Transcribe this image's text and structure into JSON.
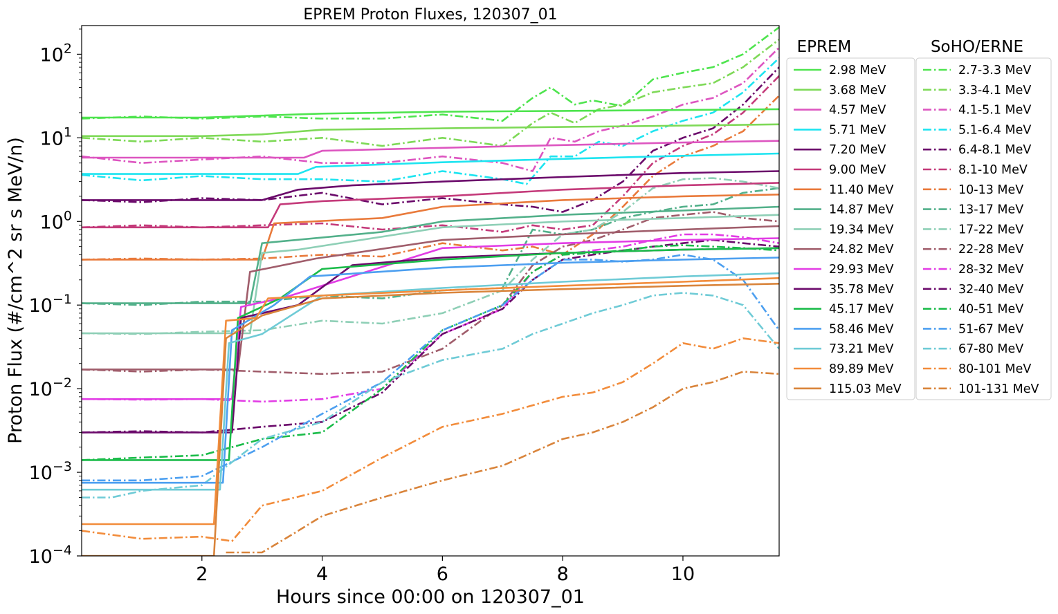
{
  "chart_data": {
    "type": "line",
    "title": "EPREM Proton Fluxes, 120307_01",
    "xlabel": "Hours since 00:00 on 120307_01",
    "ylabel": "Proton Flux (#/cm^2 sr s MeV/n)",
    "xlim": [
      0,
      11.6
    ],
    "ylim": [
      0.0001,
      220
    ],
    "yscale": "log",
    "x_ticks": [
      {
        "value": 2,
        "label": "2"
      },
      {
        "value": 4,
        "label": "4"
      },
      {
        "value": 6,
        "label": "6"
      },
      {
        "value": 8,
        "label": "8"
      },
      {
        "value": 10,
        "label": "10"
      }
    ],
    "y_ticks": [
      {
        "value": 0.0001,
        "base": "10",
        "exp": "−4"
      },
      {
        "value": 0.001,
        "base": "10",
        "exp": "−3"
      },
      {
        "value": 0.01,
        "base": "10",
        "exp": "−2"
      },
      {
        "value": 0.1,
        "base": "10",
        "exp": "−1"
      },
      {
        "value": 1,
        "base": "10",
        "exp": "0"
      },
      {
        "value": 10,
        "base": "10",
        "exp": "1"
      },
      {
        "value": 100,
        "base": "10",
        "exp": "2"
      }
    ],
    "grid": false,
    "legends": [
      {
        "title": "EPREM",
        "placement": "right-upper-left",
        "linestyle": "solid"
      },
      {
        "title": "SoHO/ERNE",
        "placement": "right-upper-right",
        "linestyle": "dashdot"
      }
    ],
    "series": [
      {
        "name": "2.98 MeV",
        "group": "EPREM",
        "color": "#4ee44e",
        "x": [
          0,
          2,
          4,
          6,
          8,
          10,
          11.6
        ],
        "y": [
          17.5,
          17.5,
          19.5,
          20.5,
          21,
          21.5,
          22
        ]
      },
      {
        "name": "3.68 MeV",
        "group": "EPREM",
        "color": "#7ed957",
        "x": [
          0,
          2,
          3,
          4,
          6,
          8,
          10,
          11.6
        ],
        "y": [
          10.5,
          10.5,
          11,
          12.5,
          13,
          13.5,
          14,
          14.5
        ]
      },
      {
        "name": "4.57 MeV",
        "group": "EPREM",
        "color": "#dd55c0",
        "x": [
          0,
          3.7,
          4,
          6,
          8,
          10,
          11.6
        ],
        "y": [
          5.8,
          5.8,
          7,
          7.6,
          8.2,
          8.8,
          9.2
        ]
      },
      {
        "name": "5.71 MeV",
        "group": "EPREM",
        "color": "#1de4f0",
        "x": [
          0,
          3.6,
          3.9,
          6,
          8,
          10,
          11.6
        ],
        "y": [
          3.7,
          3.7,
          4.5,
          5.1,
          5.6,
          6.1,
          6.5
        ]
      },
      {
        "name": "7.20 MeV",
        "group": "EPREM",
        "color": "#6b0a6b",
        "x": [
          0,
          3.0,
          3.6,
          4.5,
          6,
          8,
          10,
          11.6
        ],
        "y": [
          1.8,
          1.8,
          2.4,
          2.7,
          3.0,
          3.4,
          3.8,
          4.0
        ]
      },
      {
        "name": "9.00 MeV",
        "group": "EPREM",
        "color": "#c43a7a",
        "x": [
          0,
          3.1,
          3.3,
          4,
          6,
          8,
          10,
          11.6
        ],
        "y": [
          0.85,
          0.85,
          1.6,
          1.75,
          2.0,
          2.4,
          2.7,
          2.9
        ]
      },
      {
        "name": "11.40 MeV",
        "group": "EPREM",
        "color": "#e97a3b",
        "x": [
          0,
          3.0,
          3.2,
          5,
          6,
          8,
          10,
          11.6
        ],
        "y": [
          0.35,
          0.35,
          0.95,
          1.1,
          1.5,
          1.8,
          2.0,
          2.1
        ]
      },
      {
        "name": "14.87 MeV",
        "group": "EPREM",
        "color": "#52b08a",
        "x": [
          0,
          2.8,
          3.0,
          5,
          6,
          8,
          10,
          11.6
        ],
        "y": [
          0.105,
          0.105,
          0.55,
          0.75,
          1.0,
          1.2,
          1.35,
          1.5
        ]
      },
      {
        "name": "19.34 MeV",
        "group": "EPREM",
        "color": "#8ecfb6",
        "x": [
          0,
          2.8,
          3.0,
          3.6,
          6,
          8,
          10,
          11.6
        ],
        "y": [
          0.046,
          0.046,
          0.42,
          0.46,
          0.85,
          1.0,
          1.1,
          1.2
        ]
      },
      {
        "name": "24.82 MeV",
        "group": "EPREM",
        "color": "#a05d6b",
        "x": [
          0,
          2.6,
          2.8,
          3.9,
          6,
          8,
          10,
          11.6
        ],
        "y": [
          0.017,
          0.017,
          0.25,
          0.36,
          0.6,
          0.7,
          0.8,
          0.88
        ]
      },
      {
        "name": "29.93 MeV",
        "group": "EPREM",
        "color": "#e23ce5",
        "x": [
          0,
          2.5,
          2.65,
          3.4,
          6,
          8,
          10,
          11.6
        ],
        "y": [
          0.0075,
          0.0075,
          0.095,
          0.125,
          0.48,
          0.55,
          0.6,
          0.63
        ]
      },
      {
        "name": "35.78 MeV",
        "group": "EPREM",
        "color": "#6b0a6b",
        "x": [
          0,
          2.5,
          2.65,
          3.6,
          4.5,
          6,
          8,
          10,
          11.6
        ],
        "y": [
          0.003,
          0.003,
          0.07,
          0.1,
          0.3,
          0.37,
          0.42,
          0.46,
          0.48
        ]
      },
      {
        "name": "45.17 MeV",
        "group": "EPREM",
        "color": "#1bbc4a",
        "x": [
          0,
          2.45,
          2.6,
          3.3,
          4,
          6,
          8,
          10,
          11.6
        ],
        "y": [
          0.0014,
          0.0014,
          0.07,
          0.12,
          0.27,
          0.35,
          0.42,
          0.46,
          0.48
        ]
      },
      {
        "name": "58.46 MeV",
        "group": "EPREM",
        "color": "#4c9ff0",
        "x": [
          0,
          2.35,
          2.5,
          3.2,
          3.8,
          6,
          8,
          10,
          11.6
        ],
        "y": [
          0.00075,
          0.00075,
          0.05,
          0.1,
          0.22,
          0.28,
          0.32,
          0.35,
          0.37
        ]
      },
      {
        "name": "73.21 MeV",
        "group": "EPREM",
        "color": "#6fcbd6",
        "x": [
          0,
          2.3,
          2.45,
          3.0,
          4,
          6,
          8,
          10,
          11.6
        ],
        "y": [
          0.00062,
          0.00062,
          0.035,
          0.045,
          0.13,
          0.16,
          0.19,
          0.22,
          0.24
        ]
      },
      {
        "name": "89.89 MeV",
        "group": "EPREM",
        "color": "#f28c3b",
        "x": [
          0,
          2.2,
          2.4,
          2.9,
          3.1,
          4,
          6,
          8,
          10,
          11.6
        ],
        "y": [
          0.00024,
          0.00024,
          0.065,
          0.07,
          0.12,
          0.13,
          0.15,
          0.17,
          0.19,
          0.21
        ]
      },
      {
        "name": "115.03 MeV",
        "group": "EPREM",
        "color": "#d9843b",
        "x": [
          0,
          2.2,
          2.4,
          3.0,
          4,
          6,
          8,
          10,
          11.6
        ],
        "y": [
          0.0001,
          0.0001,
          0.04,
          0.075,
          0.12,
          0.14,
          0.155,
          0.17,
          0.18
        ]
      },
      {
        "name": "2.7-3.3 MeV",
        "group": "SoHO/ERNE",
        "color": "#4ee44e",
        "x": [
          0,
          1,
          2,
          3,
          4,
          5,
          6,
          7,
          7.5,
          7.8,
          8.2,
          8.5,
          9,
          9.5,
          10,
          10.5,
          11,
          11.6
        ],
        "y": [
          17,
          18,
          17,
          18,
          17,
          17,
          19,
          16,
          30,
          40,
          25,
          28,
          24,
          50,
          60,
          70,
          100,
          210
        ]
      },
      {
        "name": "3.3-4.1 MeV",
        "group": "SoHO/ERNE",
        "color": "#7ed957",
        "x": [
          0,
          1,
          2,
          3,
          4,
          5,
          6,
          7,
          7.5,
          7.8,
          8.2,
          8.6,
          9,
          9.5,
          10,
          10.5,
          11,
          11.6
        ],
        "y": [
          10,
          9,
          10,
          9,
          10,
          8,
          10,
          8,
          15,
          20,
          15,
          22,
          25,
          35,
          40,
          45,
          70,
          150
        ]
      },
      {
        "name": "4.1-5.1 MeV",
        "group": "SoHO/ERNE",
        "color": "#dd55c0",
        "x": [
          0,
          1,
          2,
          3,
          4,
          5,
          6,
          7,
          7.5,
          7.8,
          8.2,
          8.6,
          9,
          9.5,
          10,
          10.5,
          11,
          11.6
        ],
        "y": [
          6,
          5,
          5.5,
          6,
          5,
          5,
          6,
          5,
          4,
          10,
          9,
          12,
          14,
          18,
          25,
          30,
          45,
          120
        ]
      },
      {
        "name": "5.1-6.4 MeV",
        "group": "SoHO/ERNE",
        "color": "#1de4f0",
        "x": [
          0,
          1,
          2,
          3,
          4,
          5,
          6,
          7,
          7.4,
          7.8,
          8.2,
          8.6,
          9,
          9.5,
          10,
          10.5,
          11,
          11.6
        ],
        "y": [
          3.6,
          3.1,
          3.5,
          3.2,
          3.2,
          3,
          4,
          3.2,
          2.8,
          6,
          6,
          9,
          8,
          12,
          16,
          20,
          35,
          90
        ]
      },
      {
        "name": "6.4-8.1 MeV",
        "group": "SoHO/ERNE",
        "color": "#6b0a6b",
        "x": [
          0,
          1,
          2,
          3,
          4,
          5,
          6,
          7,
          7.5,
          8,
          8.5,
          9,
          9.5,
          10,
          10.5,
          11,
          11.6
        ],
        "y": [
          1.8,
          1.7,
          1.9,
          1.8,
          2.2,
          1.6,
          1.9,
          1.6,
          1.5,
          1.3,
          1.8,
          3,
          7,
          10,
          13,
          25,
          70
        ]
      },
      {
        "name": "8.1-10 MeV",
        "group": "SoHO/ERNE",
        "color": "#c43a7a",
        "x": [
          0,
          1,
          2,
          3,
          4,
          5,
          6,
          7,
          7.5,
          8,
          8.5,
          9,
          9.5,
          10,
          10.5,
          11,
          11.6
        ],
        "y": [
          0.85,
          0.9,
          0.85,
          0.9,
          0.95,
          0.8,
          0.9,
          0.75,
          0.9,
          0.8,
          0.9,
          2,
          5,
          8,
          11,
          20,
          55
        ]
      },
      {
        "name": "10-13 MeV",
        "group": "SoHO/ERNE",
        "color": "#e97a3b",
        "x": [
          0,
          1,
          2,
          3,
          4,
          5,
          6,
          7,
          7.5,
          8,
          8.5,
          9,
          9.5,
          10,
          10.5,
          11,
          11.6
        ],
        "y": [
          0.35,
          0.36,
          0.35,
          0.36,
          0.4,
          0.38,
          0.55,
          0.45,
          0.5,
          0.4,
          0.7,
          1.5,
          3.5,
          6,
          8,
          12,
          32
        ]
      },
      {
        "name": "13-17 MeV",
        "group": "SoHO/ERNE",
        "color": "#52b08a",
        "x": [
          0,
          1,
          2,
          3,
          4,
          5,
          6,
          7,
          7.5,
          8,
          8.5,
          9,
          9.5,
          10,
          10.5,
          11,
          11.6
        ],
        "y": [
          0.105,
          0.1,
          0.11,
          0.11,
          0.13,
          0.12,
          0.15,
          0.16,
          0.8,
          0.7,
          0.8,
          1.1,
          1.3,
          1.5,
          1.6,
          2.2,
          2.5
        ]
      },
      {
        "name": "17-22 MeV",
        "group": "SoHO/ERNE",
        "color": "#8ecfb6",
        "x": [
          0,
          1,
          2,
          3,
          4,
          5,
          6,
          7,
          7.5,
          8,
          8.5,
          9,
          9.5,
          10,
          10.5,
          11,
          11.6
        ],
        "y": [
          0.046,
          0.045,
          0.048,
          0.05,
          0.065,
          0.06,
          0.08,
          0.15,
          0.35,
          0.7,
          0.8,
          1.3,
          2.5,
          3.2,
          3.3,
          3,
          2.5
        ]
      },
      {
        "name": "22-28 MeV",
        "group": "SoHO/ERNE",
        "color": "#a05d6b",
        "x": [
          0,
          1,
          2,
          3,
          4,
          5,
          6,
          7,
          7.5,
          8,
          8.5,
          9,
          9.5,
          10,
          10.5,
          11,
          11.6
        ],
        "y": [
          0.017,
          0.016,
          0.017,
          0.016,
          0.015,
          0.016,
          0.03,
          0.1,
          0.3,
          0.5,
          0.6,
          0.8,
          1.1,
          1.2,
          1.3,
          1.1,
          1
        ]
      },
      {
        "name": "28-32 MeV",
        "group": "SoHO/ERNE",
        "color": "#e23ce5",
        "x": [
          0,
          1,
          2,
          3,
          4,
          5,
          6,
          7,
          7.5,
          8,
          8.5,
          9,
          9.5,
          10,
          10.5,
          11,
          11.6
        ],
        "y": [
          0.0075,
          0.0074,
          0.0075,
          0.007,
          0.0075,
          0.01,
          0.045,
          0.09,
          0.25,
          0.4,
          0.45,
          0.5,
          0.6,
          0.7,
          0.7,
          0.65,
          0.55
        ]
      },
      {
        "name": "32-40 MeV",
        "group": "SoHO/ERNE",
        "color": "#6b0a6b",
        "x": [
          0,
          1,
          2,
          3,
          4,
          5,
          6,
          7,
          7.5,
          8,
          8.5,
          9,
          9.5,
          10,
          10.5,
          11,
          11.6
        ],
        "y": [
          0.003,
          0.0031,
          0.003,
          0.0035,
          0.004,
          0.009,
          0.045,
          0.09,
          0.2,
          0.35,
          0.4,
          0.45,
          0.5,
          0.55,
          0.6,
          0.55,
          0.5
        ]
      },
      {
        "name": "40-51 MeV",
        "group": "SoHO/ERNE",
        "color": "#1bbc4a",
        "x": [
          0,
          1,
          2,
          3,
          4,
          5,
          6,
          7,
          7.5,
          8,
          8.5,
          9,
          9.5,
          10,
          10.5,
          11,
          11.6
        ],
        "y": [
          0.0014,
          0.0015,
          0.0016,
          0.0025,
          0.003,
          0.01,
          0.05,
          0.1,
          0.25,
          0.4,
          0.42,
          0.45,
          0.5,
          0.52,
          0.5,
          0.48,
          0.45
        ]
      },
      {
        "name": "51-67 MeV",
        "group": "SoHO/ERNE",
        "color": "#4c9ff0",
        "x": [
          0,
          1,
          2,
          3,
          4,
          5,
          6,
          7,
          7.5,
          8,
          8.5,
          9,
          9.5,
          10,
          10.5,
          11,
          11.6
        ],
        "y": [
          0.0008,
          0.0008,
          0.0009,
          0.002,
          0.005,
          0.012,
          0.05,
          0.1,
          0.2,
          0.35,
          0.35,
          0.33,
          0.35,
          0.4,
          0.35,
          0.2,
          0.05
        ]
      },
      {
        "name": "67-80 MeV",
        "group": "SoHO/ERNE",
        "color": "#6fcbd6",
        "x": [
          0,
          0.5,
          1,
          2,
          3,
          4,
          5,
          6,
          7,
          7.5,
          8,
          8.5,
          9,
          9.5,
          10,
          10.5,
          11,
          11.6
        ],
        "y": [
          0.0005,
          0.0005,
          0.0006,
          0.0007,
          0.0025,
          0.004,
          0.012,
          0.022,
          0.03,
          0.045,
          0.06,
          0.08,
          0.1,
          0.13,
          0.14,
          0.13,
          0.1,
          0.03
        ]
      },
      {
        "name": "80-101 MeV",
        "group": "SoHO/ERNE",
        "color": "#f28c3b",
        "x": [
          0,
          1,
          2,
          2.5,
          3,
          4,
          5,
          6,
          7,
          8,
          8.5,
          9,
          9.5,
          10,
          10.5,
          11,
          11.6
        ],
        "y": [
          0.0002,
          0.00016,
          0.00017,
          0.00015,
          0.0004,
          0.0006,
          0.0015,
          0.0035,
          0.005,
          0.008,
          0.009,
          0.012,
          0.02,
          0.035,
          0.03,
          0.04,
          0.035
        ]
      },
      {
        "name": "101-131 MeV",
        "group": "SoHO/ERNE",
        "color": "#d9843b",
        "x": [
          2.4,
          2.6,
          3,
          3.5,
          4,
          5,
          6,
          7,
          8,
          8.5,
          9,
          9.5,
          10,
          10.5,
          11,
          11.6
        ],
        "y": [
          0.00011,
          0.00011,
          0.00011,
          0.00018,
          0.0003,
          0.0005,
          0.0008,
          0.0012,
          0.0025,
          0.003,
          0.004,
          0.006,
          0.01,
          0.012,
          0.016,
          0.015
        ]
      }
    ]
  }
}
